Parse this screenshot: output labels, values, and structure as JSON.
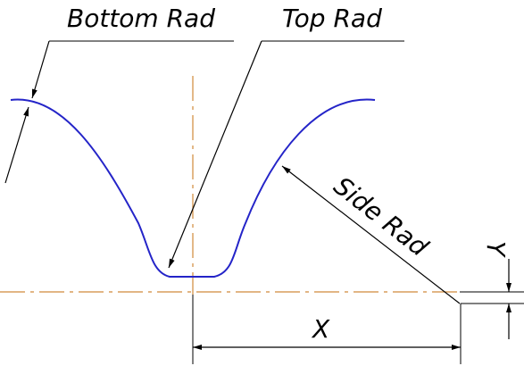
{
  "labels": {
    "bottom_rad": "Bottom Rad",
    "top_rad": "Top Rad",
    "side_rad": "Side Rad",
    "x": "X",
    "y": "Y"
  },
  "colors": {
    "profile": "#2424c8",
    "centerline": "#d08a3a",
    "annotation": "#000000"
  }
}
